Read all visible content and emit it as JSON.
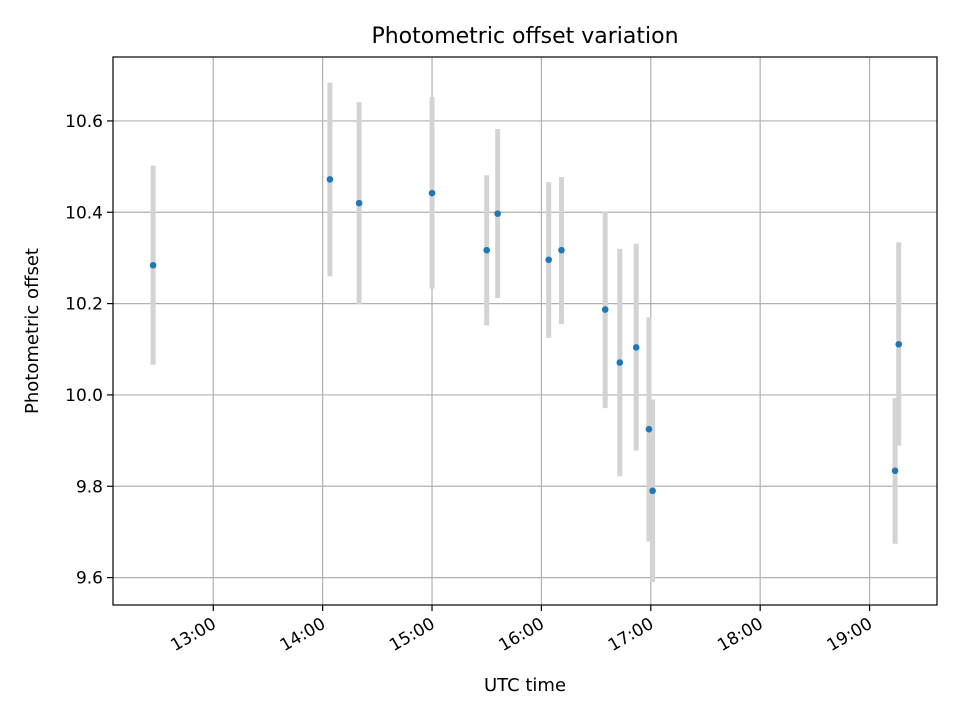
{
  "chart_data": {
    "type": "scatter",
    "title": "Photometric offset variation",
    "xlabel": "UTC time",
    "ylabel": "Photometric offset",
    "xlim": [
      "12:05",
      "19:37"
    ],
    "ylim": [
      9.54,
      10.74
    ],
    "x_ticks": [
      "13:00",
      "14:00",
      "15:00",
      "16:00",
      "17:00",
      "18:00",
      "19:00"
    ],
    "y_ticks": [
      "9.6",
      "9.8",
      "10.0",
      "10.2",
      "10.4",
      "10.6"
    ],
    "grid": true,
    "colors": {
      "marker": "#1f77b4",
      "errorbar": "#d3d3d3",
      "grid": "#b0b0b0"
    },
    "points": [
      {
        "x": "12:27",
        "y": 10.284,
        "low": 10.066,
        "high": 10.502
      },
      {
        "x": "14:04",
        "y": 10.472,
        "low": 10.26,
        "high": 10.684
      },
      {
        "x": "14:20",
        "y": 10.42,
        "low": 10.198,
        "high": 10.641
      },
      {
        "x": "15:00",
        "y": 10.442,
        "low": 10.233,
        "high": 10.652
      },
      {
        "x": "15:30",
        "y": 10.317,
        "low": 10.152,
        "high": 10.481
      },
      {
        "x": "15:36",
        "y": 10.397,
        "low": 10.212,
        "high": 10.582
      },
      {
        "x": "16:04",
        "y": 10.296,
        "low": 10.125,
        "high": 10.466
      },
      {
        "x": "16:11",
        "y": 10.317,
        "low": 10.155,
        "high": 10.477
      },
      {
        "x": "16:35",
        "y": 10.187,
        "low": 9.971,
        "high": 10.401
      },
      {
        "x": "16:43",
        "y": 10.071,
        "low": 9.822,
        "high": 10.32
      },
      {
        "x": "16:52",
        "y": 10.104,
        "low": 9.878,
        "high": 10.331
      },
      {
        "x": "16:59",
        "y": 9.925,
        "low": 9.679,
        "high": 10.17
      },
      {
        "x": "17:01",
        "y": 9.79,
        "low": 9.59,
        "high": 9.99
      },
      {
        "x": "19:14",
        "y": 9.834,
        "low": 9.674,
        "high": 9.993
      },
      {
        "x": "19:16",
        "y": 10.111,
        "low": 9.889,
        "high": 10.334
      }
    ]
  }
}
